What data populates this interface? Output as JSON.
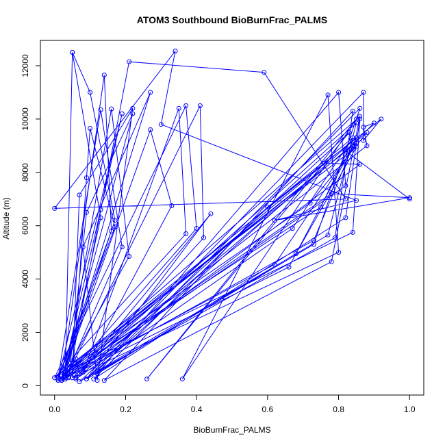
{
  "chart_data": {
    "type": "line",
    "title": "ATOM3 Southbound BioBurnFrac_PALMS",
    "xlabel": "BioBurnFrac_PALMS",
    "ylabel": "Altitude (m)",
    "xlim": [
      -0.04,
      1.04
    ],
    "ylim": [
      -350,
      12950
    ],
    "x_ticks": [
      0.0,
      0.2,
      0.4,
      0.6,
      0.8,
      1.0
    ],
    "x_tick_labels": [
      "0.0",
      "0.2",
      "0.4",
      "0.6",
      "0.8",
      "1.0"
    ],
    "y_ticks": [
      0,
      2000,
      4000,
      6000,
      8000,
      10000,
      12000
    ],
    "y_tick_labels": [
      "0",
      "2000",
      "4000",
      "6000",
      "8000",
      "10000",
      "12000"
    ],
    "grid": false,
    "legend": "none",
    "series": [
      {
        "color": "#0000ff",
        "marker": "open-circle",
        "points": [
          [
            0.05,
            12500
          ],
          [
            0.13,
            6300
          ],
          [
            0.03,
            250
          ],
          [
            0.05,
            12500
          ],
          [
            0.1,
            11000
          ],
          [
            0.17,
            6200
          ],
          [
            0.02,
            250
          ],
          [
            0.14,
            11650
          ],
          [
            0.16,
            5800
          ],
          [
            0.01,
            300
          ],
          [
            0.13,
            10350
          ],
          [
            0.19,
            5200
          ],
          [
            0.03,
            300
          ],
          [
            0.16,
            10380
          ],
          [
            0.21,
            4850
          ],
          [
            0.02,
            250
          ],
          [
            0.27,
            11000
          ],
          [
            0.08,
            5200
          ],
          [
            0.12,
            200
          ],
          [
            0.22,
            10400
          ],
          [
            0.07,
            7150
          ],
          [
            0.05,
            300
          ],
          [
            0.09,
            7800
          ],
          [
            0.1,
            9650
          ],
          [
            0.17,
            5950
          ],
          [
            0.01,
            250
          ],
          [
            0.19,
            10200
          ],
          [
            0.13,
            6600
          ],
          [
            0.02,
            200
          ],
          [
            0.22,
            10200
          ],
          [
            0.09,
            6500
          ],
          [
            0.04,
            300
          ],
          [
            0.21,
            12150
          ],
          [
            0.59,
            11750
          ],
          [
            0.82,
            7000
          ],
          [
            0.0,
            6650
          ],
          [
            0.34,
            12550
          ],
          [
            0.3,
            9800
          ],
          [
            0.85,
            6950
          ],
          [
            0.62,
            6200
          ],
          [
            1.0,
            7050
          ],
          [
            0.78,
            7200
          ],
          [
            0.02,
            250
          ],
          [
            0.27,
            9600
          ],
          [
            0.33,
            6750
          ],
          [
            0.08,
            500
          ],
          [
            0.35,
            10400
          ],
          [
            0.37,
            5700
          ],
          [
            0.0,
            300
          ],
          [
            0.37,
            10500
          ],
          [
            0.4,
            5900
          ],
          [
            0.03,
            250
          ],
          [
            0.41,
            10500
          ],
          [
            0.42,
            5550
          ],
          [
            0.06,
            300
          ],
          [
            0.06,
            1000
          ],
          [
            0.07,
            450
          ],
          [
            0.44,
            6450
          ],
          [
            0.09,
            250
          ],
          [
            0.87,
            11000
          ],
          [
            0.87,
            9200
          ],
          [
            0.92,
            10000
          ],
          [
            0.6,
            6700
          ],
          [
            0.11,
            250
          ],
          [
            0.82,
            6300
          ],
          [
            0.86,
            10000
          ],
          [
            0.84,
            5750
          ],
          [
            0.03,
            500
          ],
          [
            0.86,
            10100
          ],
          [
            0.78,
            4650
          ],
          [
            0.14,
            200
          ],
          [
            0.84,
            10300
          ],
          [
            0.79,
            5550
          ],
          [
            0.07,
            150
          ],
          [
            0.83,
            9500
          ],
          [
            0.26,
            250
          ],
          [
            0.85,
            10000
          ],
          [
            0.36,
            250
          ],
          [
            0.77,
            10900
          ],
          [
            0.8,
            5000
          ],
          [
            0.05,
            300
          ],
          [
            0.85,
            9850
          ],
          [
            0.77,
            5650
          ],
          [
            0.12,
            550
          ],
          [
            0.86,
            10400
          ],
          [
            0.73,
            5300
          ],
          [
            0.09,
            250
          ],
          [
            0.85,
            9300
          ],
          [
            0.73,
            5450
          ],
          [
            0.02,
            200
          ],
          [
            0.84,
            9200
          ],
          [
            0.75,
            6700
          ],
          [
            0.02,
            350
          ],
          [
            0.84,
            9300
          ],
          [
            0.67,
            5900
          ],
          [
            0.06,
            250
          ],
          [
            0.88,
            9500
          ],
          [
            0.72,
            6850
          ],
          [
            0.02,
            400
          ],
          [
            0.85,
            9100
          ],
          [
            0.62,
            4550
          ],
          [
            0.01,
            200
          ],
          [
            0.84,
            9000
          ],
          [
            0.66,
            4450
          ],
          [
            0.08,
            600
          ],
          [
            0.86,
            8300
          ],
          [
            0.76,
            8350
          ],
          [
            0.0,
            300
          ],
          [
            0.85,
            8950
          ],
          [
            0.68,
            4950
          ],
          [
            0.12,
            450
          ],
          [
            0.8,
            11000
          ],
          [
            0.82,
            7500
          ],
          [
            0.04,
            350
          ],
          [
            0.88,
            9000
          ],
          [
            0.87,
            9700
          ],
          [
            0.9,
            9850
          ],
          [
            0.82,
            8800
          ],
          [
            1.0,
            7000
          ]
        ]
      }
    ]
  }
}
